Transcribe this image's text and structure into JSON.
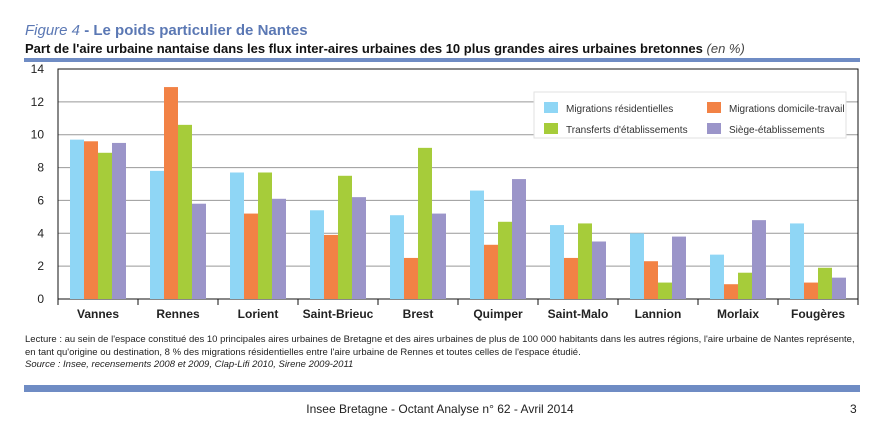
{
  "header": {
    "figure_label": "Figure 4",
    "title": " - Le poids particulier de Nantes",
    "subtitle": "Part de l'aire urbaine nantaise dans les flux inter-aires urbaines des 10 plus grandes aires urbaines bretonnes ",
    "unit": "(en %)"
  },
  "chart_data": {
    "type": "bar",
    "categories": [
      "Vannes",
      "Rennes",
      "Lorient",
      "Saint-Brieuc",
      "Brest",
      "Quimper",
      "Saint-Malo",
      "Lannion",
      "Morlaix",
      "Fougères"
    ],
    "series": [
      {
        "name": "Migrations résidentielles",
        "color": "#8fd6f5",
        "values": [
          9.7,
          7.8,
          7.7,
          5.4,
          5.1,
          6.6,
          4.5,
          4.0,
          2.7,
          4.6
        ]
      },
      {
        "name": "Migrations domicile-travail",
        "color": "#f28245",
        "values": [
          9.6,
          12.9,
          5.2,
          3.9,
          2.5,
          3.3,
          2.5,
          2.3,
          0.9,
          1.0
        ]
      },
      {
        "name": "Transferts d'établissements",
        "color": "#a6cc3a",
        "values": [
          8.9,
          10.6,
          7.7,
          7.5,
          9.2,
          4.7,
          4.6,
          1.0,
          1.6,
          1.9
        ]
      },
      {
        "name": "Siège-établissements",
        "color": "#9b95c9",
        "values": [
          9.5,
          5.8,
          6.1,
          6.2,
          5.2,
          7.3,
          3.5,
          3.8,
          4.8,
          1.3
        ]
      }
    ],
    "ylim": [
      0,
      14
    ],
    "yticks": [
      "0",
      "2",
      "4",
      "6",
      "8",
      "10",
      "12",
      "14"
    ],
    "grid": true,
    "legend": "top-right"
  },
  "notes": {
    "lecture": "Lecture : au sein de l'espace constitué des 10 principales aires urbaines de Bretagne et des aires urbaines de plus de 100 000 habitants dans les autres régions, l'aire urbaine de Nantes représente, en tant qu'origine ou destination, 8 % des migrations résidentielles entre l'aire urbaine de Rennes et toutes celles de l'espace étudié.",
    "source": "Source : Insee, recensements 2008 et 2009, Clap-Lifi 2010, Sirene 2009-2011"
  },
  "footer": {
    "text": "Insee Bretagne -  Octant Analyse n° 62 - Avril 2014",
    "page": "3"
  }
}
